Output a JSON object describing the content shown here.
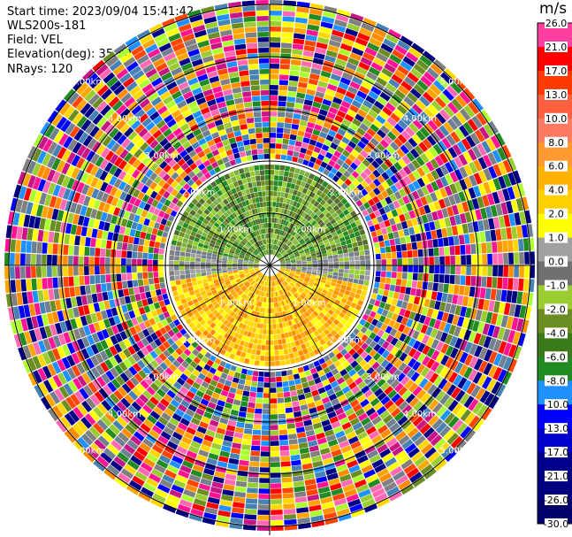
{
  "info": {
    "start_time": "Start time: 2023/09/04 15:41:42",
    "instrument": "WLS200s-181",
    "field": "Field: VEL",
    "elevation": "Elevation(deg): 35.30",
    "nrays": "NRays: 120"
  },
  "colorbar": {
    "unit": "m/s",
    "ticks": [
      "26.0",
      "21.0",
      "17.0",
      "13.0",
      "10.0",
      "8.0",
      "6.0",
      "4.0",
      "2.0",
      "1.0",
      "0.0",
      "-1.0",
      "-2.0",
      "-4.0",
      "-6.0",
      "-8.0",
      "-10.0",
      "-13.0",
      "-17.0",
      "-21.0",
      "-26.0",
      "-30.0"
    ],
    "colors": [
      "#ff3fa0",
      "#ff0000",
      "#ff3a00",
      "#ff6040",
      "#ff7a60",
      "#ff9a30",
      "#ffb300",
      "#ffd000",
      "#ffff00",
      "#a0a0a0",
      "#707070",
      "#9acd32",
      "#6b8e23",
      "#3a7a1a",
      "#228b22",
      "#1e90ff",
      "#0000ff",
      "#0000cd",
      "#00008b",
      "#000080",
      "#00006a"
    ]
  },
  "range_rings": {
    "labels": [
      "1.00km",
      "2.00km",
      "3.00km",
      "4.00km",
      "5.00km"
    ]
  },
  "ppi": {
    "palette": [
      "#ff1493",
      "#ff69b4",
      "#ff0000",
      "#ff8c00",
      "#ffd700",
      "#ffff00",
      "#9acd32",
      "#6b8e23",
      "#228b22",
      "#708090",
      "#808080",
      "#1e90ff",
      "#0000ff",
      "#000080",
      "#00008b",
      "#ff4500",
      "#ffa500",
      "#adff2f",
      "#4682b4",
      "#c71585"
    ]
  }
}
